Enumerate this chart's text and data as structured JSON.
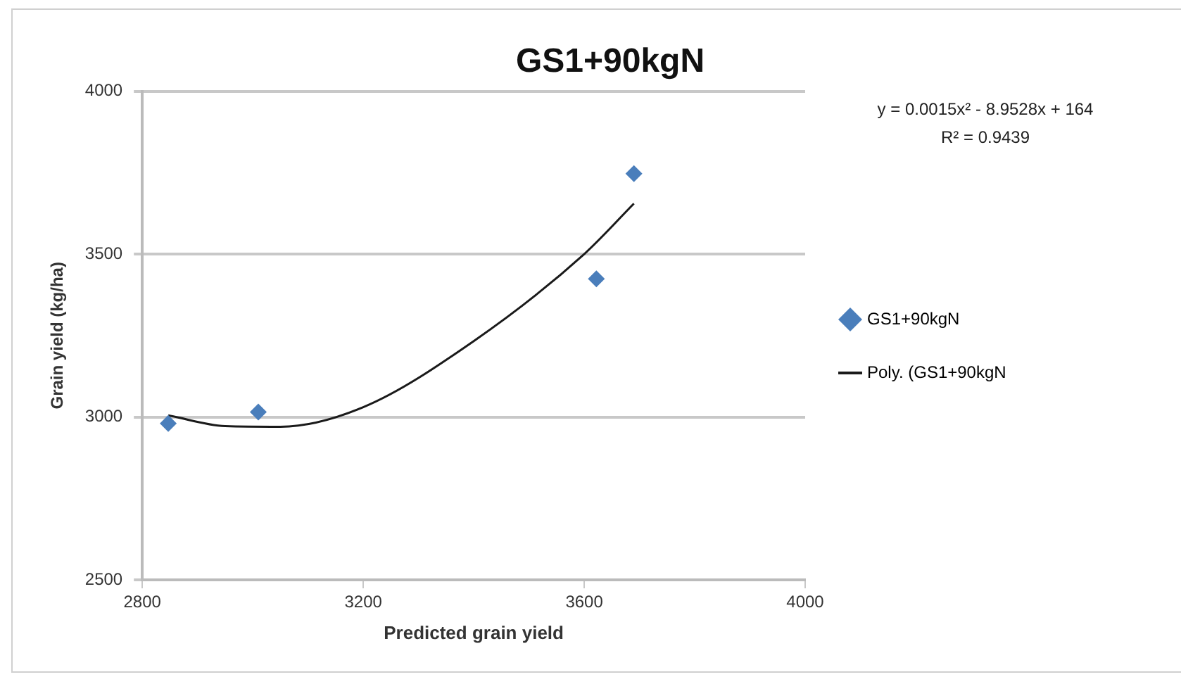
{
  "chart_data": {
    "type": "scatter",
    "title": "GS1+90kgN",
    "xlabel": "Predicted grain yield",
    "ylabel": "Grain yield (kg/ha)",
    "annotations": [
      "y = 0.0015x² - 8.9528x + 164",
      "R² = 0.9439"
    ],
    "xlim": [
      2800,
      4000
    ],
    "xticks": [
      2800,
      3200,
      3600,
      4000
    ],
    "ylim": [
      2500,
      4000
    ],
    "yticks": [
      2500,
      3000,
      3500,
      4000
    ],
    "grid": "y",
    "legend": "right",
    "marker": "diamond",
    "series": [
      {
        "name": "GS1+90kgN",
        "color": "#4a7ebb",
        "x": [
          2847,
          3010,
          3622,
          3690
        ],
        "values": [
          2980,
          3015,
          3424,
          3747
        ]
      },
      {
        "name": "Poly. (GS1+90kgN",
        "type": "line",
        "marker": "none",
        "color": "#1a1a1a",
        "x": [
          2847,
          2950,
          3050,
          3200,
          3400,
          3600,
          3690
        ],
        "values": [
          3005,
          2972,
          2970,
          3030,
          3233,
          3500,
          3655
        ]
      }
    ]
  }
}
